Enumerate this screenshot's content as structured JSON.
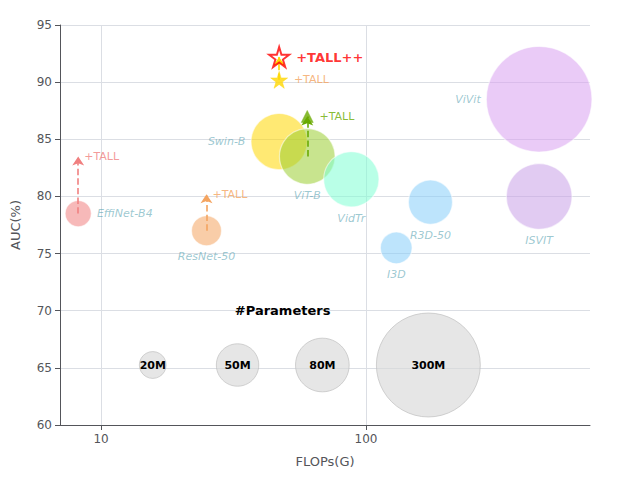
{
  "chart_data": {
    "type": "scatter",
    "xlabel": "FLOPs(G)",
    "ylabel": "AUC(%)",
    "log": "x",
    "grid": true,
    "xlim": [
      7,
      700
    ],
    "xticks": [
      10,
      100
    ],
    "ylim": [
      60,
      95
    ],
    "yticks": [
      60,
      65,
      70,
      75,
      80,
      85,
      90,
      95
    ],
    "labels": [
      "EffiNet-B4",
      "ResNet-50",
      "Swin-B",
      "ViT-B",
      "VidTr",
      "I3D",
      "R3D-50",
      "ISVIT",
      "ViVit"
    ],
    "x": [
      8.2,
      25.0,
      47.0,
      60.0,
      88.0,
      130.0,
      175.0,
      450.0,
      450.0
    ],
    "values": [
      78.5,
      77.0,
      84.8,
      83.5,
      81.5,
      75.5,
      79.5,
      80.0,
      88.5
    ],
    "sizes": [
      19,
      25,
      88,
      86,
      85,
      28,
      54,
      120,
      310
    ],
    "colors": [
      "#f08080",
      "#f4a460",
      "#ffd700",
      "#9acd32",
      "#7fffd4",
      "#87cefa",
      "#87cefa",
      "#c8a0e8",
      "#d8a0f0"
    ],
    "label_color": "#4a9aaa",
    "arrows": [
      {
        "x": 8.2,
        "from": 78.5,
        "to": 83.5,
        "color": "#f08080",
        "line_style": "dashed"
      },
      {
        "x": 25.0,
        "from": 77.0,
        "to": 80.2,
        "color": "#f4a460",
        "line_style": "dashed"
      },
      {
        "x": 60.0,
        "from": 83.5,
        "to": 87.0,
        "color": "#6aaa00",
        "line_style": "dashed"
      },
      {
        "x": 47.0,
        "from": 90.2,
        "to": 92.2,
        "color": "#ffd700",
        "line_style": "dashed"
      }
    ],
    "annotations": [
      {
        "text": "+TALL",
        "x": 8.2,
        "y": 83.5,
        "color": "#f08080",
        "marker": "none"
      },
      {
        "text": "+TALL",
        "x": 25.0,
        "y": 80.2,
        "color": "#f4a460",
        "marker": "none"
      },
      {
        "text": "+TALL",
        "x": 60.0,
        "y": 87.0,
        "color": "#6aaa00",
        "marker": "triangle"
      },
      {
        "text": "+TALL",
        "x": 47.0,
        "y": 90.2,
        "color": "#f4a460",
        "marker": "star",
        "marker_color": "#ffd700"
      },
      {
        "text": "+TALL++",
        "x": 47.0,
        "y": 92.2,
        "color": "#ff0000",
        "marker": "hollow_star"
      }
    ],
    "size_legend": {
      "title": "#Parameters",
      "values": [
        20,
        50,
        80,
        300
      ],
      "labels": [
        "20M",
        "50M",
        "80M",
        "300M"
      ],
      "color": "#d8d8d8"
    }
  }
}
